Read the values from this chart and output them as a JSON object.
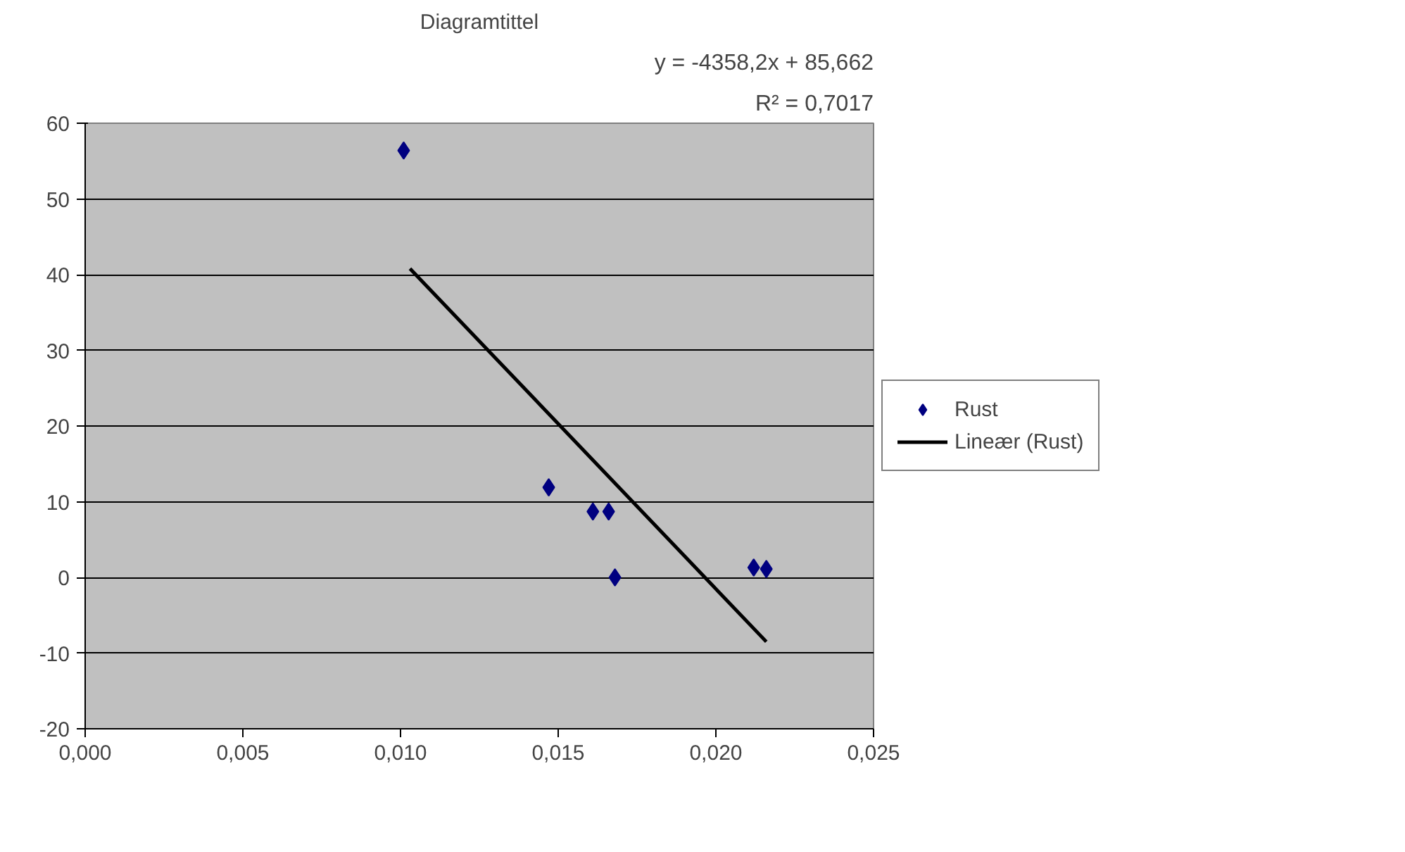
{
  "chart_data": {
    "type": "scatter",
    "title": "Diagramtittel",
    "annotations": [
      "y = -4358,2x + 85,662",
      "R² = 0,7017"
    ],
    "xlim": [
      0,
      0.025
    ],
    "xticks": [
      {
        "value": 0,
        "label": "0,000"
      },
      {
        "value": 0.005,
        "label": "0,005"
      },
      {
        "value": 0.01,
        "label": "0,010"
      },
      {
        "value": 0.015,
        "label": "0,015"
      },
      {
        "value": 0.02,
        "label": "0,020"
      },
      {
        "value": 0.025,
        "label": "0,025"
      }
    ],
    "ylim": [
      -20,
      60
    ],
    "yticks": [
      -20,
      -10,
      0,
      10,
      20,
      30,
      40,
      50,
      60
    ],
    "grid": "y",
    "legend": "right",
    "marker": "diamond",
    "series": [
      {
        "name": "Rust",
        "color": "#000080",
        "x": [
          0.0101,
          0.0147,
          0.0161,
          0.0166,
          0.0168,
          0.0212,
          0.0216
        ],
        "values": [
          56.4,
          11.9,
          8.7,
          8.7,
          0,
          1.3,
          1.1
        ]
      },
      {
        "name": "Lineær (Rust)",
        "type": "line",
        "color": "#000000",
        "marker": "none",
        "x": [
          0.0103,
          0.0216
        ],
        "values": [
          40.8,
          -8.5
        ]
      }
    ]
  }
}
